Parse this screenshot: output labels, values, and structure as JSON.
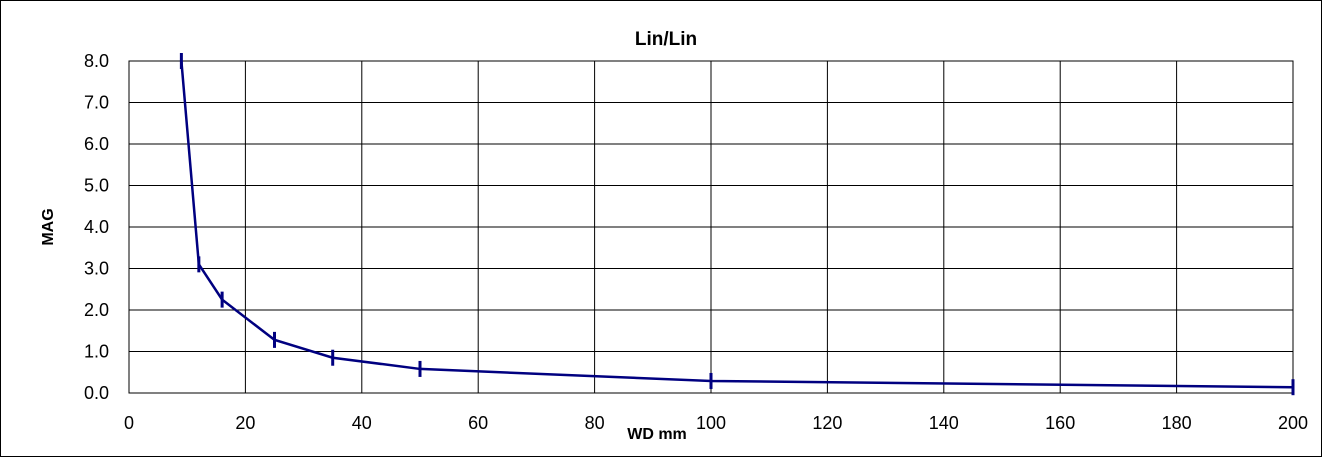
{
  "chart_data": {
    "type": "line",
    "title": "Lin/Lin",
    "xlabel": "WD mm",
    "ylabel": "MAG",
    "xlim": [
      0,
      200
    ],
    "ylim": [
      0,
      8
    ],
    "x_ticks": [
      "0",
      "20",
      "40",
      "60",
      "80",
      "100",
      "120",
      "140",
      "160",
      "180",
      "200"
    ],
    "y_ticks": [
      "0.0",
      "1.0",
      "2.0",
      "3.0",
      "4.0",
      "5.0",
      "6.0",
      "7.0",
      "8.0"
    ],
    "grid": true,
    "marker": "vertical-dash",
    "line_color": "#000080",
    "series": [
      {
        "x": [
          9,
          12,
          16,
          25,
          35,
          50,
          100,
          200
        ],
        "y": [
          8.0,
          3.1,
          2.25,
          1.28,
          0.85,
          0.58,
          0.29,
          0.14
        ]
      }
    ]
  }
}
